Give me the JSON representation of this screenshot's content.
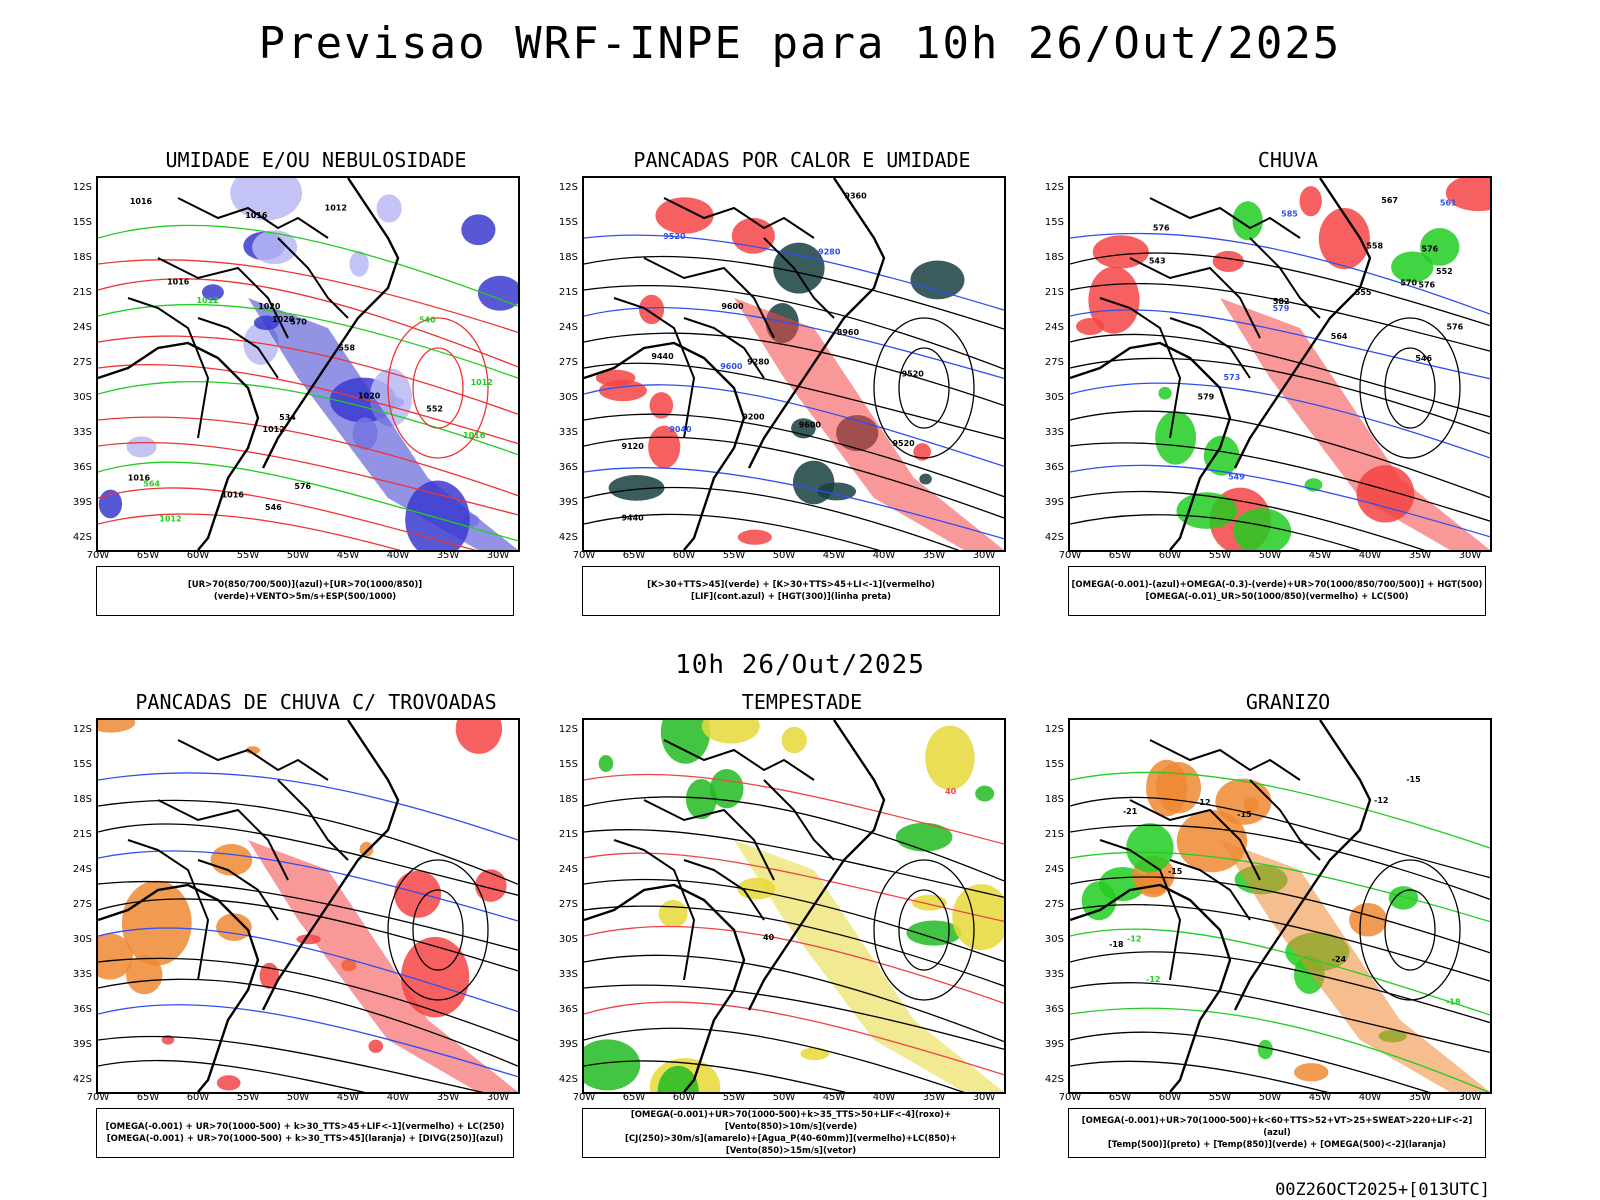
{
  "main_title": "Previsao WRF-INPE  para 10h 26/Out/2025",
  "mid_title": "10h 26/Out/2025",
  "footer": "00Z26OCT2025+[013UTC]",
  "lat_labels": [
    "12S",
    "15S",
    "18S",
    "21S",
    "24S",
    "27S",
    "30S",
    "33S",
    "36S",
    "39S",
    "42S"
  ],
  "lon_labels": [
    "70W",
    "65W",
    "60W",
    "55W",
    "50W",
    "45W",
    "40W",
    "35W",
    "30W"
  ],
  "panels": [
    {
      "title": "UMIDADE E/OU NEBULOSIDADE",
      "legend": [
        "[UR>70(850/700/500)](azul)+[UR>70(1000/850)](verde)+VENTO>5m/s+ESP(500/1000)"
      ],
      "contour_labels": [
        "1012",
        "1012",
        "1016",
        "1020",
        "1016",
        "1012",
        "1016",
        "1020",
        "1012",
        "1016",
        "1016",
        "1016",
        "1012",
        "1020",
        "576",
        "570",
        "564",
        "558",
        "552",
        "546",
        "540",
        "534"
      ],
      "colors": {
        "fill_a": "#3b3bd0",
        "fill_b": "#b9b9f5",
        "line_a": "#22cc22",
        "line_b": "#ee3333"
      }
    },
    {
      "title": "PANCADAS POR CALOR E UMIDADE",
      "legend": [
        "[K>30+TTS>45](verde) + [K>30+TTS>45+LI<-1](vermelho)",
        "[LIF](cont.azul) + [HGT(300)](linha preta)"
      ],
      "contour_labels": [
        "9600",
        "9600",
        "9600",
        "9520",
        "9520",
        "9440",
        "9440",
        "9360",
        "9280",
        "9280",
        "9200",
        "9120",
        "9040",
        "8960",
        "9520"
      ],
      "colors": {
        "fill_a": "#f44444",
        "fill_b": "#173f3f",
        "line_a": "#2f4ff0",
        "line_b": "#000000"
      }
    },
    {
      "title": "CHUVA",
      "legend": [
        "[OMEGA(-0.001)-(azul)+OMEGA(-0.3)-(verde)+UR>70(1000/850/700/500)] + HGT(500)",
        "[OMEGA(-0.01)_UR>50(1000/850)(vermelho) + LC(500)"
      ],
      "contour_labels": [
        "585",
        "582",
        "579",
        "576",
        "573",
        "570",
        "567",
        "564",
        "561",
        "558",
        "555",
        "552",
        "549",
        "546",
        "543",
        "576",
        "579",
        "576",
        "576"
      ],
      "colors": {
        "fill_a": "#f44444",
        "fill_b": "#22cc22",
        "line_a": "#2f4ff0",
        "line_b": "#000000"
      }
    },
    {
      "title": "PANCADAS DE CHUVA C/ TROVOADAS",
      "legend": [
        "[OMEGA(-0.001) + UR>70(1000-500) + k>30_TTS>45+LIF<-1](vermelho) + LC(250)",
        "[OMEGA(-0.001) + UR>70(1000-500) + k>30_TTS>45](laranja) + [DIVG(250)](azul)"
      ],
      "contour_labels": [],
      "colors": {
        "fill_a": "#f44444",
        "fill_b": "#ee8833",
        "line_a": "#2f4ff0",
        "line_b": "#000000"
      }
    },
    {
      "title": "TEMPESTADE",
      "legend": [
        "[OMEGA(-0.001)+UR>70(1000-500)+k>35_TTS>50+LIF<-4](roxo)+[Vento(850)>10m/s](verde)",
        "[CJ(250)>30m/s](amarelo)+[Agua_P(40-60mm)](vermelho)+LC(850)+[Vento(850)>15m/s](vetor)"
      ],
      "contour_labels": [
        "40",
        "40"
      ],
      "colors": {
        "fill_a": "#e6d838",
        "fill_b": "#22bb22",
        "line_a": "#ee4444",
        "line_b": "#000000"
      }
    },
    {
      "title": "GRANIZO",
      "legend": [
        "[OMEGA(-0.001)+UR>70(1000-500)+k<60+TTS>52+VT>25+SWEAT>220+LIF<-2](azul)",
        "[Temp(500)](preto) + [Temp(850)](verde) + [OMEGA(500)<-2](laranja)"
      ],
      "contour_labels": [
        "-12",
        "-15",
        "-15",
        "-12",
        "-18",
        "-18",
        "-21",
        "-24",
        "-12",
        "-15",
        "-12"
      ],
      "colors": {
        "fill_a": "#ee8833",
        "fill_b": "#22cc22",
        "line_a": "#22cc22",
        "line_b": "#000000"
      }
    }
  ]
}
